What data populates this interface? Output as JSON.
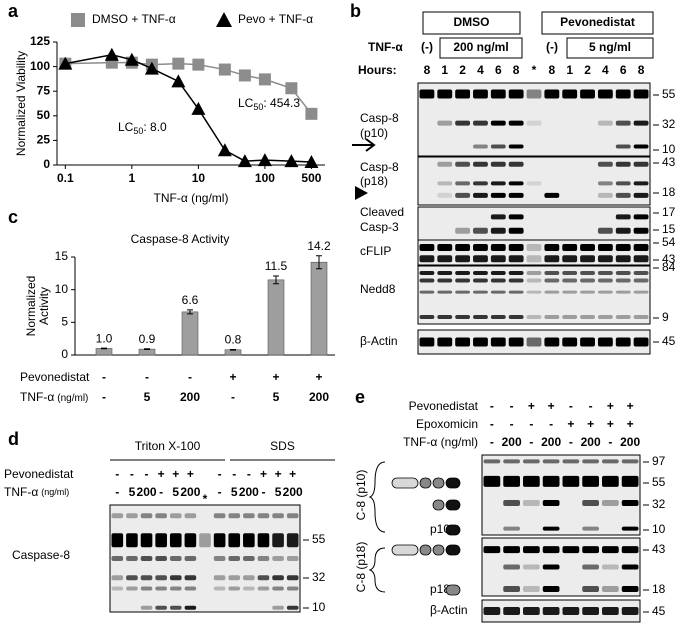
{
  "chart_data": [
    {
      "panel": "a",
      "type": "scatter",
      "xlabel": "TNF-α (ng/ml)",
      "ylabel": "Normalized Viability",
      "xscale": "log",
      "xlim": [
        0.075,
        800
      ],
      "xticks": [
        0.1,
        1,
        10,
        100,
        500
      ],
      "ylim": [
        0,
        125
      ],
      "yticks": [
        0,
        25,
        50,
        75,
        100,
        125
      ],
      "x": [
        0.1,
        0.5,
        1,
        2,
        5,
        10,
        25,
        50,
        100,
        250,
        500
      ],
      "series": [
        {
          "name": "DMSO + TNF-α",
          "color": "#8c8c8c",
          "marker": "square",
          "values": [
            103,
            104,
            104,
            102,
            103,
            102,
            97,
            91,
            87,
            78,
            52
          ]
        },
        {
          "name": "Pevo + TNF-α",
          "color": "#000000",
          "marker": "triangle",
          "values": [
            103,
            112,
            107,
            98,
            85,
            57,
            15,
            4,
            5,
            4,
            3
          ]
        }
      ],
      "annotations": [
        {
          "prefix": "LC",
          "sub": "50",
          "text": ": 454.3"
        },
        {
          "prefix": "LC",
          "sub": "50",
          "text": ": 8.0"
        }
      ]
    },
    {
      "panel": "c",
      "type": "bar",
      "title": "Caspase-8 Activity",
      "ylabel": [
        "Normalized",
        "Activity"
      ],
      "values": [
        1.0,
        0.9,
        6.6,
        0.8,
        11.5,
        14.2
      ],
      "value_labels": [
        "1.0",
        "0.9",
        "6.6",
        "0.8",
        "11.5",
        "14.2"
      ],
      "errors": [
        0.05,
        0.05,
        0.3,
        0.05,
        0.6,
        1.0
      ],
      "color": "#9e9e9e",
      "ylim": [
        0,
        15
      ],
      "yticks": [
        0,
        5,
        10,
        15
      ],
      "conditions": [
        {
          "label": "Pevonedistat",
          "values": [
            "-",
            "-",
            "-",
            "+",
            "+",
            "+"
          ]
        },
        {
          "label": "TNF-α",
          "unit": "(ng/ml)",
          "values": [
            "-",
            "5",
            "200",
            "-",
            "5",
            "200"
          ]
        }
      ]
    }
  ],
  "blots": {
    "b": {
      "panel": "b",
      "groups": [
        "DMSO",
        "Pevonedistat"
      ],
      "tnf_label": "TNF-α",
      "tnf": [
        "(-)",
        "200 ng/ml",
        "(-)",
        "5 ng/ml"
      ],
      "hours_label": "Hours:",
      "hours": [
        "8",
        "1",
        "2",
        "4",
        "6",
        "8",
        "*",
        "8",
        "1",
        "2",
        "4",
        "6",
        "8"
      ],
      "rows": [
        {
          "label": [
            "Casp-8",
            "(p10)"
          ],
          "mw": [
            "55",
            "32",
            "10"
          ]
        },
        {
          "label": [
            "Casp-8",
            "(p18)"
          ],
          "mw": [
            "43",
            "18"
          ]
        },
        {
          "label": [
            "Cleaved",
            "Casp-3"
          ],
          "mw": [
            "17",
            "15"
          ]
        },
        {
          "label": [
            "cFLIP"
          ],
          "mw": [
            "54",
            "43"
          ]
        },
        {
          "label": [
            "Nedd8"
          ],
          "mw": [
            "84",
            "9"
          ]
        },
        {
          "label": [
            "β-Actin"
          ],
          "mw": [
            "45"
          ]
        }
      ]
    },
    "d": {
      "panel": "d",
      "pevo_label": "Pevonedistat",
      "tnf_label": "TNF-α",
      "tnf_unit": "(ng/ml)",
      "star": "*",
      "groups": [
        {
          "label": "Triton X-100",
          "pevonedistat": [
            "-",
            "-",
            "-",
            "+",
            "+",
            "+"
          ],
          "tnf": [
            "-",
            "5",
            "200",
            "-",
            "5",
            "200"
          ]
        },
        {
          "label": "SDS",
          "pevonedistat": [
            "-",
            "-",
            "-",
            "+",
            "+",
            "+"
          ],
          "tnf": [
            "-",
            "5",
            "200",
            "-",
            "5",
            "200"
          ]
        }
      ],
      "row_label": "Caspase-8",
      "mw": [
        "55",
        "32",
        "10"
      ]
    },
    "e": {
      "panel": "e",
      "conditions": [
        {
          "label": "Pevonedistat",
          "values": [
            "-",
            "-",
            "+",
            "+",
            "-",
            "-",
            "+",
            "+"
          ]
        },
        {
          "label": "Epoxomicin",
          "values": [
            "-",
            "-",
            "-",
            "-",
            "+",
            "+",
            "+",
            "+"
          ]
        },
        {
          "label": "TNF-α (ng/ml)",
          "values": [
            "-",
            "200",
            "-",
            "200",
            "-",
            "200",
            "-",
            "200"
          ]
        }
      ],
      "rows": [
        {
          "label": "C-8 (p10)",
          "fragment": "p10",
          "mw": [
            "97",
            "55",
            "32",
            "10"
          ]
        },
        {
          "label": "C-8 (p18)",
          "fragment": "p18",
          "mw": [
            "43",
            "18"
          ]
        },
        {
          "label": "β-Actin",
          "mw": [
            "45"
          ]
        }
      ]
    }
  }
}
